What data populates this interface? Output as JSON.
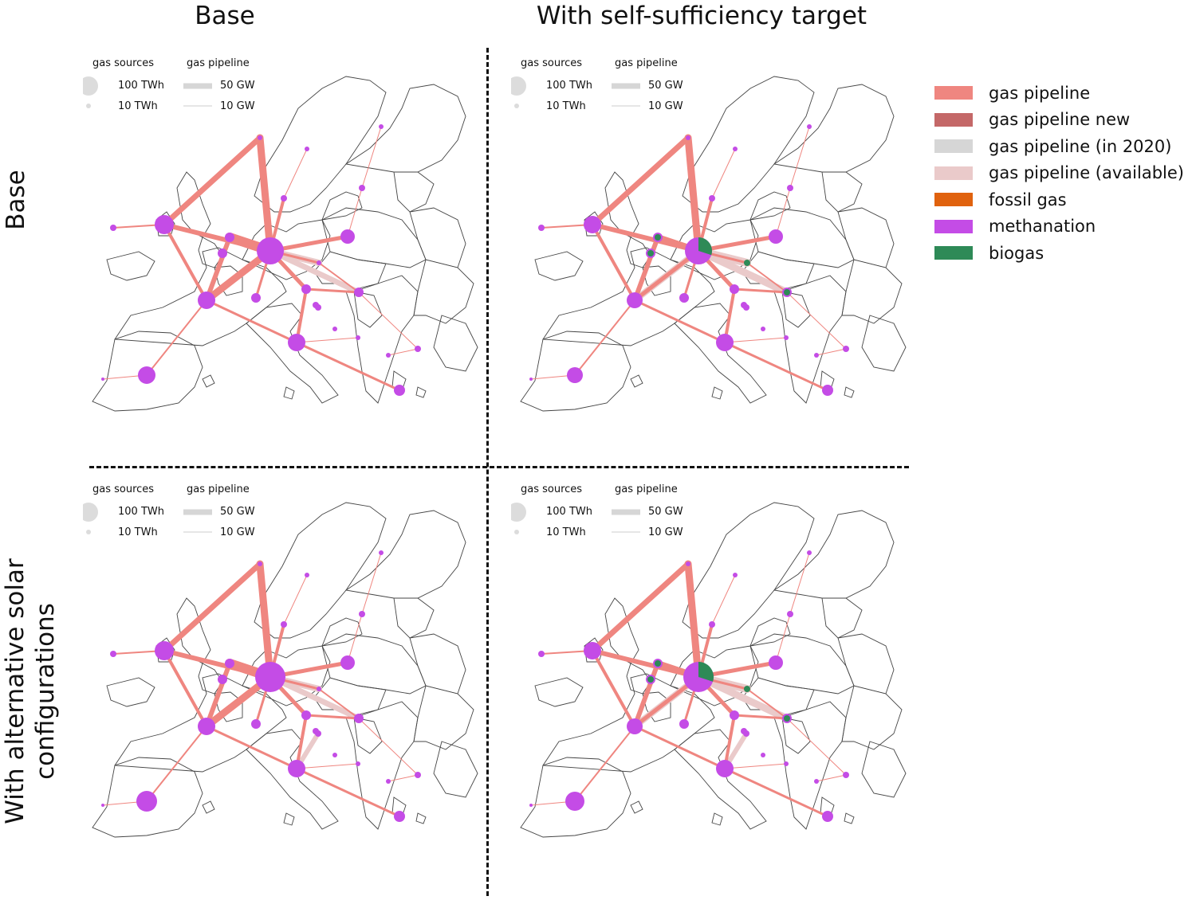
{
  "column_titles": [
    "Base",
    "With self-sufficiency target"
  ],
  "row_titles": [
    "Base",
    "With alternative solar configurations"
  ],
  "size_legend": {
    "sources_title": "gas sources",
    "pipeline_title": "gas pipeline",
    "sources": [
      "100 TWh",
      "10 TWh"
    ],
    "pipelines": [
      "50 GW",
      "10 GW"
    ]
  },
  "legend": [
    {
      "label": "gas pipeline",
      "color": "#ef8680"
    },
    {
      "label": "gas pipeline new",
      "color": "#c46868"
    },
    {
      "label": "gas pipeline (in 2020)",
      "color": "#d6d6d6"
    },
    {
      "label": "gas pipeline (available)",
      "color": "#eacaca"
    },
    {
      "label": "fossil gas",
      "color": "#e0620e"
    },
    {
      "label": "methanation",
      "color": "#c44ce6"
    },
    {
      "label": "biogas",
      "color": "#2e8a57"
    }
  ],
  "colors": {
    "pipeline": "#ef8680",
    "pipeline_available": "#eacaca",
    "methanation": "#c44ce6",
    "biogas": "#2e8a57",
    "border": "#444444"
  },
  "panels": [
    {
      "column": "Base",
      "row": "Base",
      "scenario": "base-base",
      "hub_biogas_share": 0
    },
    {
      "column": "With self-sufficiency target",
      "row": "Base",
      "scenario": "selfsuff-base",
      "hub_biogas_share": 0.3
    },
    {
      "column": "Base",
      "row": "With alternative solar configurations",
      "scenario": "base-alt",
      "hub_biogas_share": 0
    },
    {
      "column": "With self-sufficiency target",
      "row": "With alternative solar configurations",
      "scenario": "selfsuff-alt",
      "hub_biogas_share": 0.3
    }
  ]
}
